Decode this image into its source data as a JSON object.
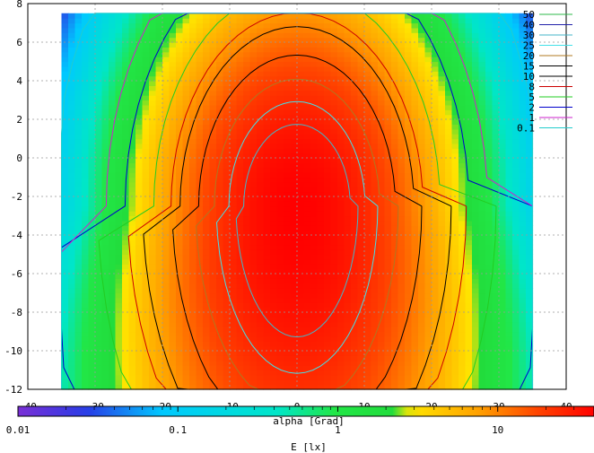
{
  "chart_data": {
    "type": "heatmap",
    "xlabel": "alpha [Grad]",
    "ylabel": "",
    "xlim": [
      -40,
      40
    ],
    "ylim": [
      -12,
      8
    ],
    "x_ticks": [
      "-40",
      "-30",
      "-20",
      "-10",
      "0",
      "10",
      "20",
      "30",
      "40"
    ],
    "y_ticks": [
      "8",
      "6",
      "4",
      "2",
      "0",
      "-2",
      "-4",
      "-6",
      "-8",
      "-10",
      "-12"
    ],
    "grid": true,
    "legend_position": "top-right",
    "colorbar": {
      "label": "E [lx]",
      "scale": "log",
      "range": [
        0.01,
        40
      ],
      "ticks": [
        "0.01",
        "0.1",
        "1",
        "10"
      ]
    },
    "contour_levels": [
      {
        "value": "50",
        "color": "#2db84a"
      },
      {
        "value": "40",
        "color": "#2222aa"
      },
      {
        "value": "30",
        "color": "#44b6c8"
      },
      {
        "value": "25",
        "color": "#44e0e8"
      },
      {
        "value": "20",
        "color": "#b07820"
      },
      {
        "value": "15",
        "color": "#000000"
      },
      {
        "value": "10",
        "color": "#000000"
      },
      {
        "value": "8",
        "color": "#cc0000"
      },
      {
        "value": "5",
        "color": "#22cc22"
      },
      {
        "value": "2",
        "color": "#0000cc"
      },
      {
        "value": "1",
        "color": "#cc22cc"
      },
      {
        "value": "0.1",
        "color": "#22cccc"
      }
    ],
    "field": {
      "center": [
        0,
        -2.5
      ],
      "peak_lux": 40,
      "outer_lux": 0.05,
      "x_extent": [
        -35,
        35
      ],
      "y_extent": [
        -12,
        7.5
      ]
    },
    "colors": {
      "low": "#7a2fd6",
      "mid_low": "#00e0ff",
      "mid": "#22ee44",
      "mid_high": "#ffdd00",
      "high": "#ff0000"
    }
  }
}
